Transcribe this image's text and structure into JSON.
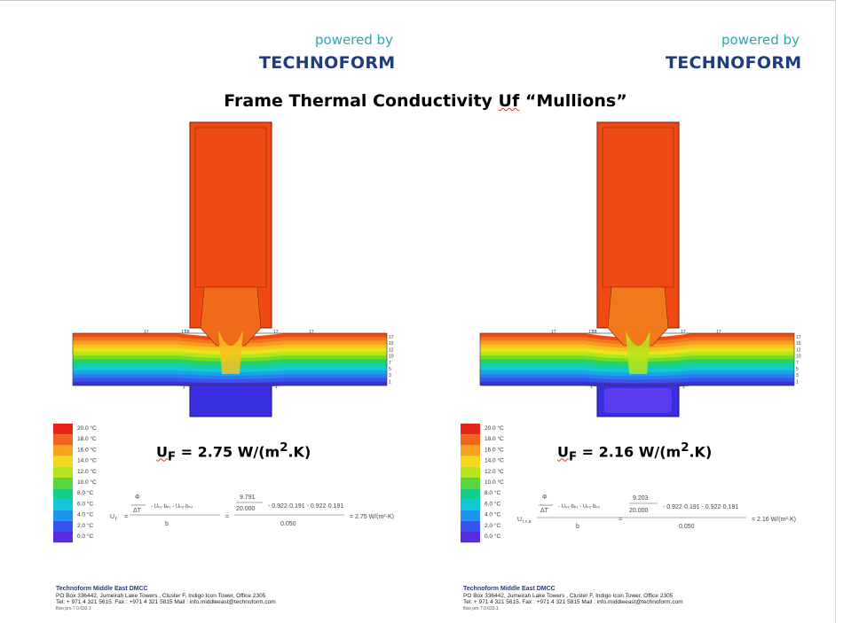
{
  "brand": {
    "powered_by": "powered by",
    "name": "TECHNOFORM"
  },
  "title": {
    "part1": "Frame Thermal Conductivity ",
    "part2": "Uf",
    "part3": " “Mullions”"
  },
  "colors": {
    "brand_teal": "#2ca6b3",
    "brand_navy": "#1f3d7a",
    "frame_hot": "#f04a14",
    "cold_blue": "#3a2fe0"
  },
  "legend": [
    "20.0 °C",
    "18.0 °C",
    "16.0 °C",
    "14.0 °C",
    "12.0 °C",
    "10.0 °C",
    "8.0 °C",
    "6.0 °C",
    "4.0 °C",
    "2.0 °C",
    "0.0 °C"
  ],
  "isotherm_labels": {
    "top": [
      "17",
      "17",
      "18",
      "17",
      "17"
    ],
    "side": [
      "17",
      "15",
      "12",
      "10",
      "7",
      "5",
      "3",
      "1"
    ],
    "bottom": [
      "1",
      "1"
    ]
  },
  "left": {
    "uf_prefix": "U",
    "uf_sub": "F",
    "uf_mid": " = 2.75 W/(m",
    "uf_sup": "2",
    "uf_end": ".K)",
    "formula": {
      "lhs": "U",
      "lhs_sub": "f",
      "phi": "Φ",
      "dt": "ΔT",
      "terms": "- Uₚ₁·bₚ₁ - Uₚ₂·bₚ₂",
      "bf": "b₟",
      "num": "9.791",
      "den": "20.000",
      "rest": "- 0.922·0.191  -  0.922·0.191",
      "bval": "0.050",
      "result": "= 2.75 W/(m²·K)"
    },
    "footer": {
      "company": "Technoform Middle East DMCC",
      "address": "PO Box 336442, Jumeirah Lake Towers , Cluster F, Indigo Icon Tower, Office 2305",
      "contact": "Tel: + 971 4 321 5615. Fax : +971 4 321 5815 Mail : info.middleeast@technoform.com",
      "version": "flixo pro 7.0.633.1"
    }
  },
  "right": {
    "uf_prefix": "U",
    "uf_sub": "F",
    "uf_mid": " = 2.16 W/(m",
    "uf_sup": "2",
    "uf_end": ".K)",
    "formula": {
      "lhs": "U",
      "lhs_sub": "f,A,B",
      "phi": "Φ",
      "dt": "ΔT",
      "terms": "- Uₚ₁·bₚ₁ - Uₚ₂·bₚ₂",
      "bf": "b₟",
      "num": "9.203",
      "den": "20.000",
      "rest": "- 0.922·0.191  -  0.922·0.191",
      "bval": "0.050",
      "result": "= 2.16 W/(m²·K)"
    },
    "footer": {
      "company": "Technoform Middle East DMCC",
      "address": "PO Box 336442, Jumeirah Lake Towers , Cluster F, Indigo Icon Tower, Office 2305",
      "contact": "Tel: + 971 4 321 5615. Fax : +971 4 321 5815 Mail : info.middleeast@technoform.com",
      "version": "flixo pro 7.0.633.1"
    }
  }
}
